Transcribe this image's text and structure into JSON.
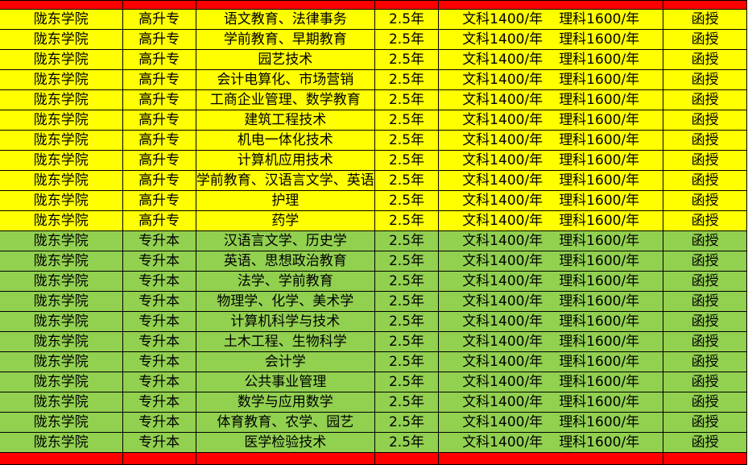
{
  "colors": {
    "header_band": "#ff0000",
    "group_gaosheng": "#ffff00",
    "group_zhuansheng": "#92d050"
  },
  "rows": [
    {
      "school": "陇东学院",
      "level": "高升专",
      "major": "语文教育、法律事务",
      "years": "2.5年",
      "fee_arts": "文科1400/年",
      "fee_sci": "理科1600/年",
      "mode": "函授",
      "group": "y"
    },
    {
      "school": "陇东学院",
      "level": "高升专",
      "major": "学前教育、早期教育",
      "years": "2.5年",
      "fee_arts": "文科1400/年",
      "fee_sci": "理科1600/年",
      "mode": "函授",
      "group": "y"
    },
    {
      "school": "陇东学院",
      "level": "高升专",
      "major": "园艺技术",
      "years": "2.5年",
      "fee_arts": "文科1400/年",
      "fee_sci": "理科1600/年",
      "mode": "函授",
      "group": "y"
    },
    {
      "school": "陇东学院",
      "level": "高升专",
      "major": "会计电算化、市场营销",
      "years": "2.5年",
      "fee_arts": "文科1400/年",
      "fee_sci": "理科1600/年",
      "mode": "函授",
      "group": "y"
    },
    {
      "school": "陇东学院",
      "level": "高升专",
      "major": "工商企业管理、数学教育",
      "years": "2.5年",
      "fee_arts": "文科1400/年",
      "fee_sci": "理科1600/年",
      "mode": "函授",
      "group": "y"
    },
    {
      "school": "陇东学院",
      "level": "高升专",
      "major": "建筑工程技术",
      "years": "2.5年",
      "fee_arts": "文科1400/年",
      "fee_sci": "理科1600/年",
      "mode": "函授",
      "group": "y"
    },
    {
      "school": "陇东学院",
      "level": "高升专",
      "major": "机电一体化技术",
      "years": "2.5年",
      "fee_arts": "文科1400/年",
      "fee_sci": "理科1600/年",
      "mode": "函授",
      "group": "y"
    },
    {
      "school": "陇东学院",
      "level": "高升专",
      "major": "计算机应用技术",
      "years": "2.5年",
      "fee_arts": "文科1400/年",
      "fee_sci": "理科1600/年",
      "mode": "函授",
      "group": "y"
    },
    {
      "school": "陇东学院",
      "level": "高升专",
      "major": "学前教育、汉语言文学、英语",
      "years": "2.5年",
      "fee_arts": "文科1400/年",
      "fee_sci": "理科1600/年",
      "mode": "函授",
      "group": "y"
    },
    {
      "school": "陇东学院",
      "level": "高升专",
      "major": "护理",
      "years": "2.5年",
      "fee_arts": "文科1400/年",
      "fee_sci": "理科1600/年",
      "mode": "函授",
      "group": "y"
    },
    {
      "school": "陇东学院",
      "level": "高升专",
      "major": "药学",
      "years": "2.5年",
      "fee_arts": "文科1400/年",
      "fee_sci": "理科1600/年",
      "mode": "函授",
      "group": "y"
    },
    {
      "school": "陇东学院",
      "level": "专升本",
      "major": "汉语言文学、历史学",
      "years": "2.5年",
      "fee_arts": "文科1400/年",
      "fee_sci": "理科1600/年",
      "mode": "函授",
      "group": "g"
    },
    {
      "school": "陇东学院",
      "level": "专升本",
      "major": "英语、思想政治教育",
      "years": "2.5年",
      "fee_arts": "文科1400/年",
      "fee_sci": "理科1600/年",
      "mode": "函授",
      "group": "g"
    },
    {
      "school": "陇东学院",
      "level": "专升本",
      "major": "法学、学前教育",
      "years": "2.5年",
      "fee_arts": "文科1400/年",
      "fee_sci": "理科1600/年",
      "mode": "函授",
      "group": "g"
    },
    {
      "school": "陇东学院",
      "level": "专升本",
      "major": "物理学、化学、美术学",
      "years": "2.5年",
      "fee_arts": "文科1400/年",
      "fee_sci": "理科1600/年",
      "mode": "函授",
      "group": "g"
    },
    {
      "school": "陇东学院",
      "level": "专升本",
      "major": "计算机科学与技术",
      "years": "2.5年",
      "fee_arts": "文科1400/年",
      "fee_sci": "理科1600/年",
      "mode": "函授",
      "group": "g"
    },
    {
      "school": "陇东学院",
      "level": "专升本",
      "major": "土木工程、生物科学",
      "years": "2.5年",
      "fee_arts": "文科1400/年",
      "fee_sci": "理科1600/年",
      "mode": "函授",
      "group": "g"
    },
    {
      "school": "陇东学院",
      "level": "专升本",
      "major": "会计学",
      "years": "2.5年",
      "fee_arts": "文科1400/年",
      "fee_sci": "理科1600/年",
      "mode": "函授",
      "group": "g"
    },
    {
      "school": "陇东学院",
      "level": "专升本",
      "major": "公共事业管理",
      "years": "2.5年",
      "fee_arts": "文科1400/年",
      "fee_sci": "理科1600/年",
      "mode": "函授",
      "group": "g"
    },
    {
      "school": "陇东学院",
      "level": "专升本",
      "major": "数学与应用数学",
      "years": "2.5年",
      "fee_arts": "文科1400/年",
      "fee_sci": "理科1600/年",
      "mode": "函授",
      "group": "g"
    },
    {
      "school": "陇东学院",
      "level": "专升本",
      "major": "体育教育、农学、园艺",
      "years": "2.5年",
      "fee_arts": "文科1400/年",
      "fee_sci": "理科1600/年",
      "mode": "函授",
      "group": "g"
    },
    {
      "school": "陇东学院",
      "level": "专升本",
      "major": "医学检验技术",
      "years": "2.5年",
      "fee_arts": "文科1400/年",
      "fee_sci": "理科1600/年",
      "mode": "函授",
      "group": "g"
    }
  ]
}
